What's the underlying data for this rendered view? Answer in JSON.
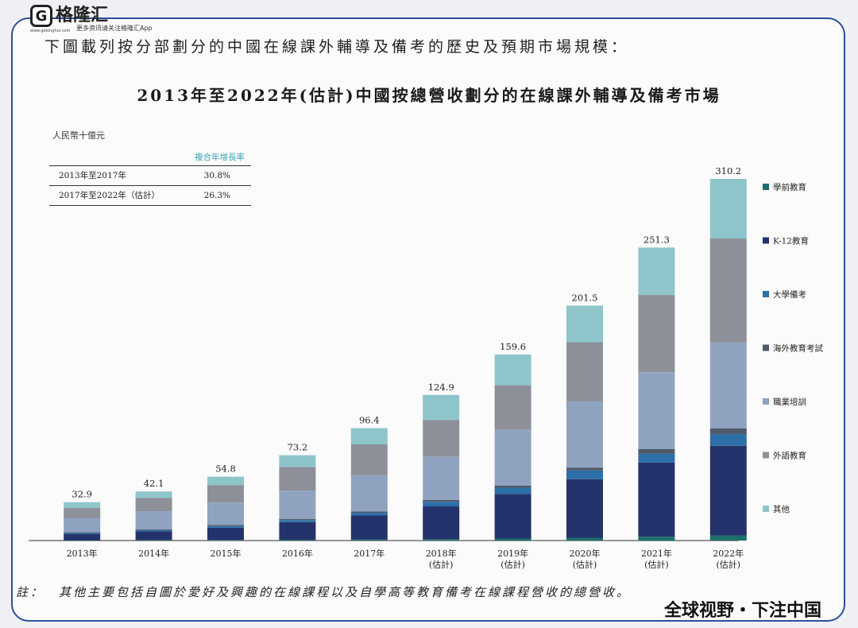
{
  "brand": {
    "name": "格隆汇",
    "mark": "G",
    "tagline": "更多资讯请关注格隆汇App",
    "url": "www.gelonghui.com"
  },
  "intro": "下圖載列按分部劃分的中國在線課外輔導及備考的歷史及預期市場規模：",
  "cagr": {
    "header": "複合年增長率",
    "rows": [
      {
        "period": "2013年至2017年",
        "rate": "30.8%"
      },
      {
        "period": "2017年至2022年（估計）",
        "rate": "26.3%"
      }
    ]
  },
  "note": "註：　其他主要包括自圖於愛好及興趣的在線課程以及自學高等教育備考在線課程營收的總營收。",
  "slogan": "全球视野・下注中国",
  "colors": {
    "學前教育": "#1d6f6c",
    "K-12教育": "#24336b",
    "大學備考": "#2d6fa8",
    "海外教育考試": "#4f5a6b",
    "職業培訓": "#8fa3c0",
    "外語教育": "#8d9099",
    "其他": "#8ec5cb"
  },
  "chart_data": {
    "type": "bar",
    "stacked": true,
    "title": "2013年至2022年(估計)中國按總營收劃分的在線課外輔導及備考市場",
    "ylabel": "人民幣十億元",
    "categories": [
      "2013年",
      "2014年",
      "2015年",
      "2016年",
      "2017年",
      "2018年\n(估計)",
      "2019年\n(估計)",
      "2020年\n(估計)",
      "2021年\n(估計)",
      "2022年\n(估計)"
    ],
    "totals": [
      32.9,
      42.1,
      54.8,
      73.2,
      96.4,
      124.9,
      159.6,
      201.5,
      251.3,
      310.2
    ],
    "total_labels": [
      "32.9",
      "42.1",
      "54.8",
      "73.2",
      "96.4",
      "124.9",
      "159.6",
      "201.5",
      "251.3",
      "310.2"
    ],
    "ylim": [
      0,
      310.2
    ],
    "legend_position": "right",
    "series": [
      {
        "name": "學前教育",
        "values": [
          0.3,
          0.4,
          0.5,
          0.7,
          0.8,
          1.2,
          1.7,
          2.4,
          3.3,
          4.4
        ]
      },
      {
        "name": "K-12教育",
        "values": [
          5.4,
          7.5,
          10.5,
          15.1,
          20.7,
          28.1,
          38.3,
          50.3,
          63.7,
          76.9
        ]
      },
      {
        "name": "大學備考",
        "values": [
          0.8,
          1.0,
          1.4,
          1.8,
          2.3,
          4.0,
          5.3,
          7.4,
          7.4,
          10.0
        ]
      },
      {
        "name": "海外教育考試",
        "values": [
          0.6,
          0.7,
          0.9,
          1.0,
          1.2,
          1.5,
          1.9,
          2.5,
          4.0,
          5.0
        ]
      },
      {
        "name": "職業培訓",
        "values": [
          12.0,
          15.6,
          19.3,
          24.2,
          31.0,
          37.0,
          48.0,
          56.8,
          66.0,
          73.6
        ]
      },
      {
        "name": "外語教育",
        "values": [
          9.0,
          11.5,
          15.0,
          20.4,
          26.5,
          31.7,
          38.0,
          50.7,
          66.2,
          89.2
        ]
      },
      {
        "name": "其他",
        "values": [
          4.8,
          5.4,
          7.2,
          10.0,
          13.9,
          21.4,
          26.4,
          31.4,
          40.7,
          51.1
        ]
      }
    ]
  }
}
